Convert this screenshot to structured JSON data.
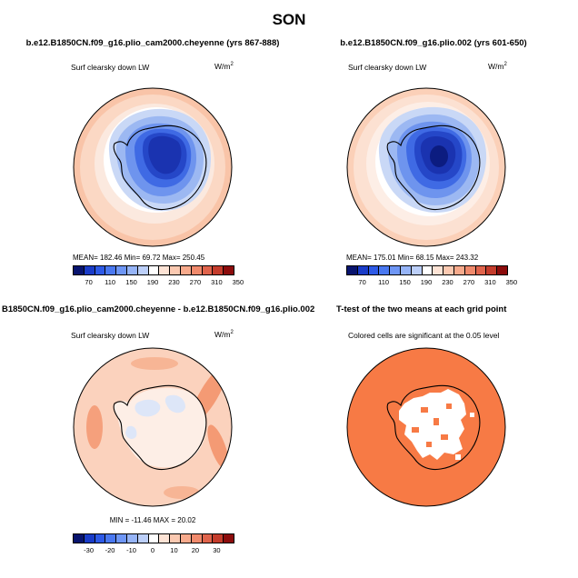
{
  "page": {
    "title": "SON"
  },
  "panels": [
    {
      "title": "b.e12.B1850CN.f09_g16.plio_cam2000.cheyenne (yrs 867-888)",
      "variable": "Surf clearsky down LW",
      "units_base": "W/m",
      "units_exp": "2",
      "stats_text": "MEAN= 182.46   Min= 69.72   Max= 250.45",
      "legend": {
        "colors": [
          "#08146e",
          "#1a3cc8",
          "#2e5ae6",
          "#4a78f0",
          "#6e96f5",
          "#96b4f7",
          "#bccff9",
          "#ffffff",
          "#fde3d5",
          "#fbc9b1",
          "#f7aa8c",
          "#f08a6c",
          "#e0644c",
          "#c43c2c",
          "#8c0c0c"
        ],
        "tick_labels": [
          "70",
          "110",
          "150",
          "190",
          "230",
          "270",
          "310",
          "350"
        ]
      }
    },
    {
      "title": "b.e12.B1850CN.f09_g16.plio.002 (yrs 601-650)",
      "variable": "Surf clearsky down LW",
      "units_base": "W/m",
      "units_exp": "2",
      "stats_text": "MEAN= 175.01   Min= 68.15   Max= 243.32",
      "legend": {
        "colors": [
          "#08146e",
          "#1a3cc8",
          "#2e5ae6",
          "#4a78f0",
          "#6e96f5",
          "#96b4f7",
          "#bccff9",
          "#ffffff",
          "#fde3d5",
          "#fbc9b1",
          "#f7aa8c",
          "#f08a6c",
          "#e0644c",
          "#c43c2c",
          "#8c0c0c"
        ],
        "tick_labels": [
          "70",
          "110",
          "150",
          "190",
          "230",
          "270",
          "310",
          "350"
        ]
      }
    },
    {
      "title": "B1850CN.f09_g16.plio_cam2000.cheyenne - b.e12.B1850CN.f09_g16.plio.002",
      "variable": "Surf clearsky down LW",
      "units_base": "W/m",
      "units_exp": "2",
      "stats_text": "MIN = -11.46  MAX =  20.02",
      "legend": {
        "colors": [
          "#08146e",
          "#1a3cc8",
          "#2e5ae6",
          "#4a78f0",
          "#6e96f5",
          "#96b4f7",
          "#bccff9",
          "#ffffff",
          "#fde3d5",
          "#fbc9b1",
          "#f7aa8c",
          "#f08a6c",
          "#e0644c",
          "#c43c2c",
          "#8c0c0c"
        ],
        "tick_labels": [
          "-30",
          "-20",
          "-10",
          "0",
          "10",
          "20",
          "30"
        ]
      }
    },
    {
      "title": "T-test of the two means at each grid point",
      "note": "Colored cells are significant at the 0.05 level",
      "significant_color": "#f77a45"
    }
  ]
}
